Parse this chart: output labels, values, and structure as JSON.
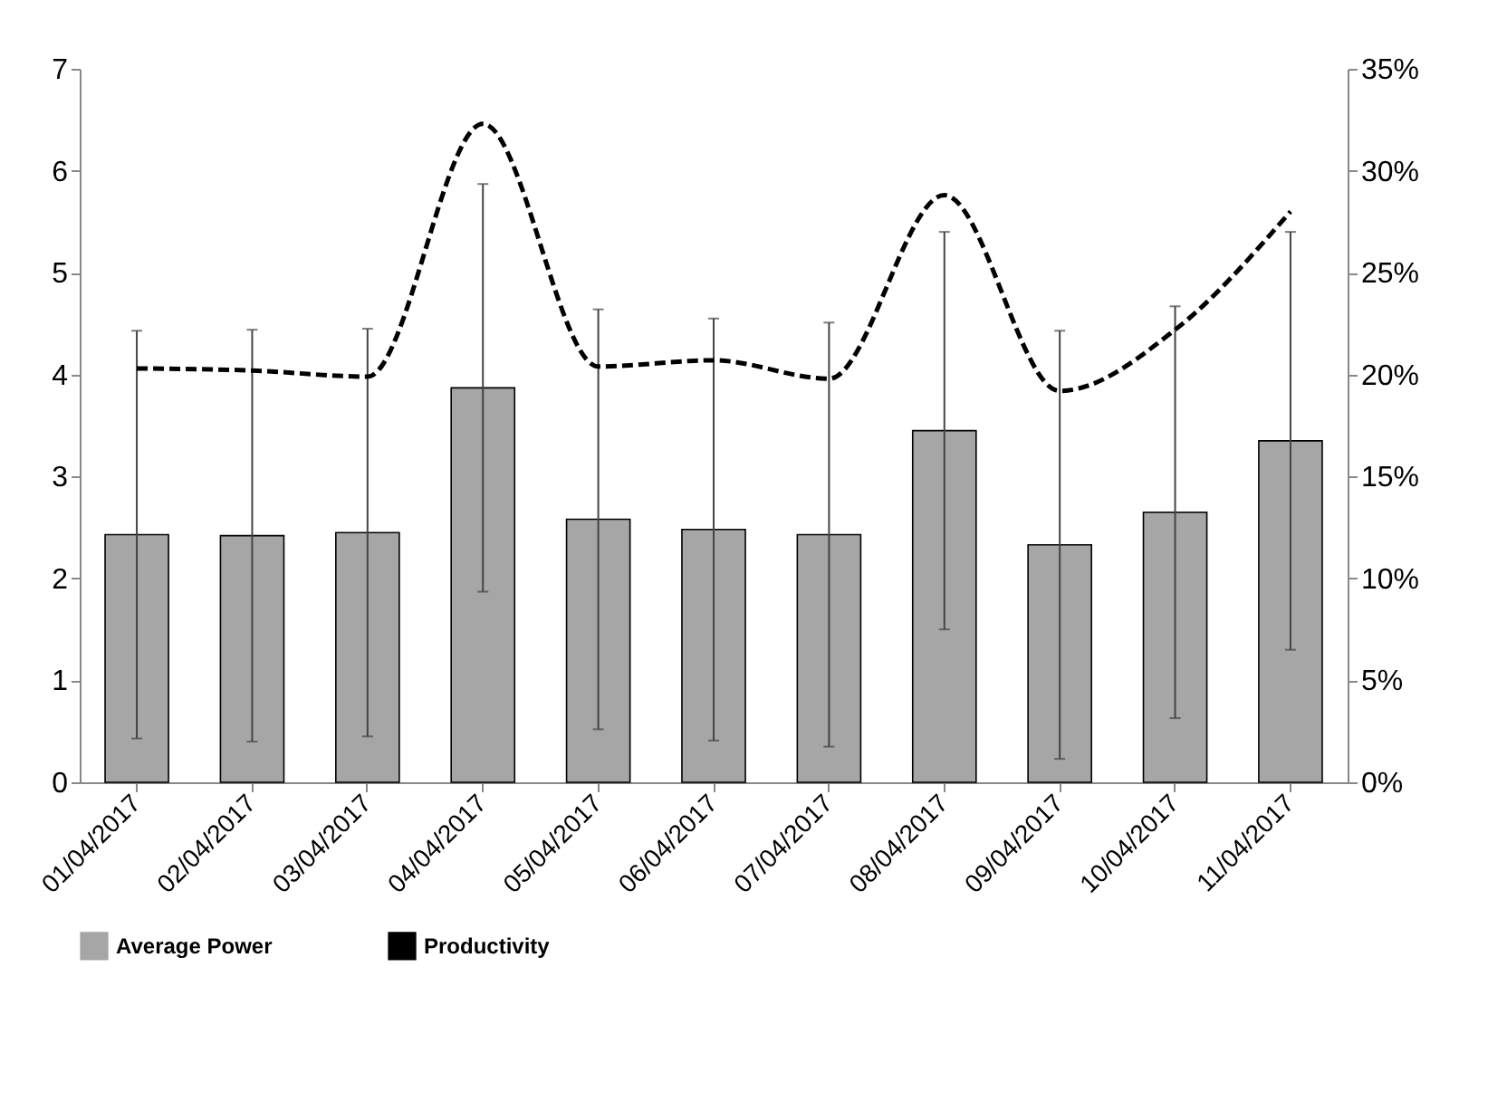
{
  "chart_data": {
    "type": "bar",
    "categories": [
      "01/04/2017",
      "02/04/2017",
      "03/04/2017",
      "04/04/2017",
      "05/04/2017",
      "06/04/2017",
      "07/04/2017",
      "08/04/2017",
      "09/04/2017",
      "10/04/2017",
      "11/04/2017"
    ],
    "series": [
      {
        "name": "Average Power",
        "type": "bar",
        "color": "#a6a6a6",
        "values": [
          2.43,
          2.42,
          2.45,
          3.87,
          2.58,
          2.48,
          2.43,
          3.45,
          2.33,
          2.65,
          3.35
        ],
        "errors": [
          2.0,
          2.02,
          2.0,
          2.0,
          2.06,
          2.07,
          2.08,
          1.95,
          2.1,
          2.02,
          2.05
        ]
      },
      {
        "name": "Productivity",
        "type": "line",
        "axis": "y2",
        "color": "#000000",
        "line_style": "dashed",
        "marker": "none",
        "values": [
          20.3,
          20.2,
          19.9,
          32.3,
          20.4,
          20.7,
          19.8,
          28.8,
          19.2,
          22.2,
          28.0
        ]
      }
    ],
    "ylim": [
      0,
      7
    ],
    "yticks": [
      0,
      1,
      2,
      3,
      4,
      5,
      6,
      7
    ],
    "y2lim": [
      0,
      35
    ],
    "y2ticks": [
      {
        "value": 0,
        "label": "0%"
      },
      {
        "value": 5,
        "label": "5%"
      },
      {
        "value": 10,
        "label": "10%"
      },
      {
        "value": 15,
        "label": "15%"
      },
      {
        "value": 20,
        "label": "20%"
      },
      {
        "value": 25,
        "label": "25%"
      },
      {
        "value": 30,
        "label": "30%"
      },
      {
        "value": 35,
        "label": "35%"
      }
    ],
    "grid": false,
    "legend": "bottom"
  }
}
